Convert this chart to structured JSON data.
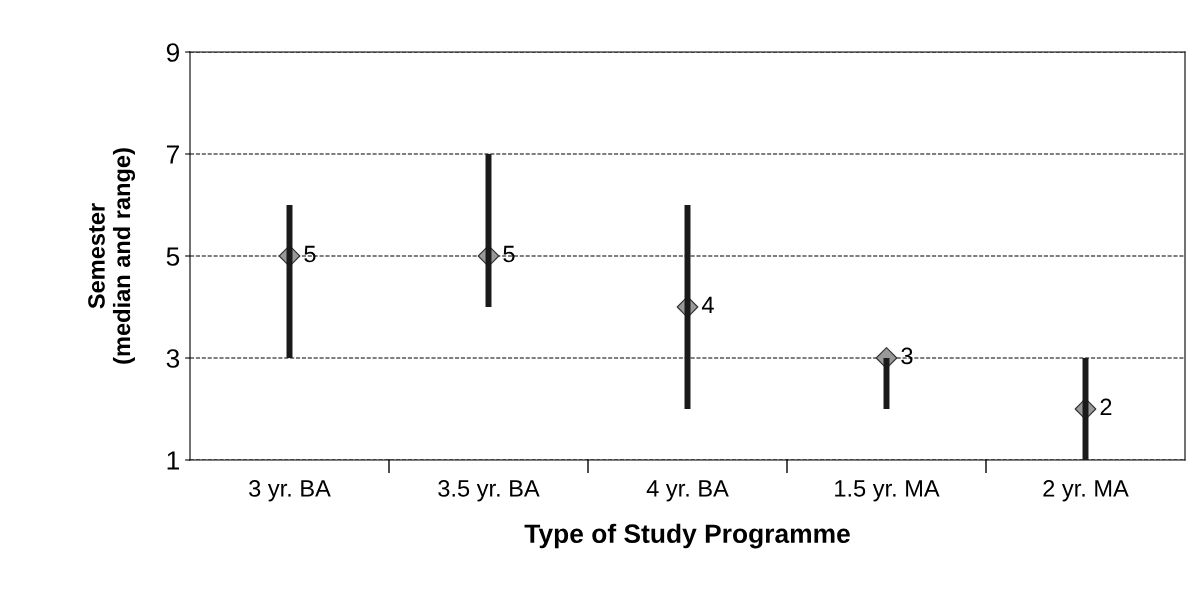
{
  "chart_data": {
    "type": "bar",
    "xlabel": "Type of Study Programme",
    "ylabel": "Semester\n(median and range)",
    "categories": [
      "3 yr. BA",
      "3.5 yr. BA",
      "4 yr. BA",
      "1.5 yr. MA",
      "2 yr. MA"
    ],
    "series": [
      {
        "color": "#1a1a1a",
        "base": [
          3,
          4,
          2,
          2,
          1
        ],
        "values": [
          3,
          3,
          4,
          1,
          2
        ]
      },
      {
        "type": "scatter",
        "color": "#999999",
        "marker": "diamond",
        "values": [
          5,
          5,
          4,
          3,
          2
        ],
        "value_labels": [
          "5",
          "5",
          "4",
          "3",
          "2"
        ]
      }
    ],
    "ylim": [
      1,
      9
    ],
    "yticks": [
      1,
      3,
      5,
      7,
      9
    ],
    "grid": "y"
  }
}
